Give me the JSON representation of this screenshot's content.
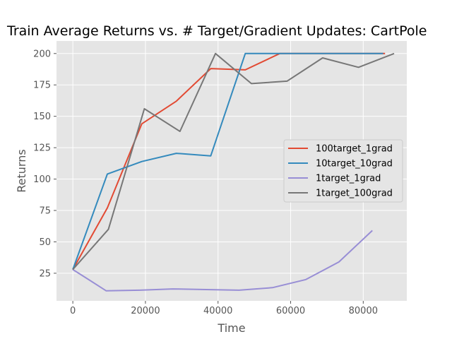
{
  "chart_data": {
    "type": "line",
    "title": "Train Average Returns vs. # Target/Gradient Updates: CartPole",
    "xlabel": "Time",
    "ylabel": "Returns",
    "xlim": [
      -4500,
      92000
    ],
    "ylim": [
      3,
      210
    ],
    "x_ticks": [
      0,
      20000,
      40000,
      60000,
      80000
    ],
    "y_ticks": [
      25,
      50,
      75,
      100,
      125,
      150,
      175,
      200
    ],
    "grid": true,
    "legend_position": "center-right",
    "series": [
      {
        "name": "100target_1grad",
        "color": "#e24a33",
        "x": [
          0,
          9500,
          19000,
          28500,
          38000,
          47500,
          57000,
          66500,
          76000,
          86000
        ],
        "y": [
          28,
          77,
          144,
          162,
          188,
          187,
          200,
          200,
          200,
          200
        ]
      },
      {
        "name": "10target_10grad",
        "color": "#348abd",
        "x": [
          0,
          9500,
          19000,
          28500,
          38000,
          47500,
          57000,
          66500,
          76000,
          85500
        ],
        "y": [
          28,
          104,
          114,
          120.5,
          118.5,
          200,
          200,
          200,
          200,
          200
        ]
      },
      {
        "name": "1target_1grad",
        "color": "#988ed5",
        "x": [
          0,
          9200,
          18400,
          27500,
          36700,
          45800,
          55000,
          64200,
          73300,
          82500
        ],
        "y": [
          28,
          11,
          11.5,
          12.5,
          12,
          11.5,
          13.5,
          20,
          34,
          59
        ]
      },
      {
        "name": "1target_100grad",
        "color": "#777777",
        "x": [
          0,
          9800,
          19700,
          29500,
          39300,
          49200,
          59000,
          68800,
          78700,
          88500
        ],
        "y": [
          28,
          60,
          156,
          138,
          200,
          176,
          178,
          196.5,
          189,
          200
        ]
      }
    ]
  }
}
